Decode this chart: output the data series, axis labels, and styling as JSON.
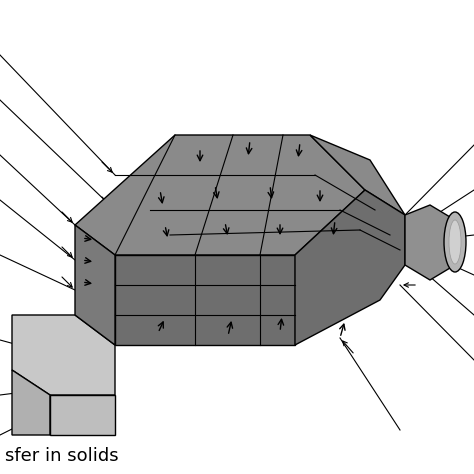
{
  "background_color": "#ffffff",
  "text_label": "sfer in solids",
  "text_fontsize": 13,
  "fig_width": 4.74,
  "fig_height": 4.74,
  "dpi": 100,
  "body_top_color": "#8a8a8a",
  "body_front_color": "#6e6e6e",
  "body_left_color": "#7a7a7a",
  "taper_top_color": "#8a8a8a",
  "taper_side_color": "#6e6e6e",
  "base_top_color": "#c8c8c8",
  "base_front_color": "#b0b0b0",
  "base_left_color": "#d0d0d0",
  "nozzle_body_color": "#909090",
  "nozzle_end_color": "#b5b5b5",
  "line_color": "#000000"
}
